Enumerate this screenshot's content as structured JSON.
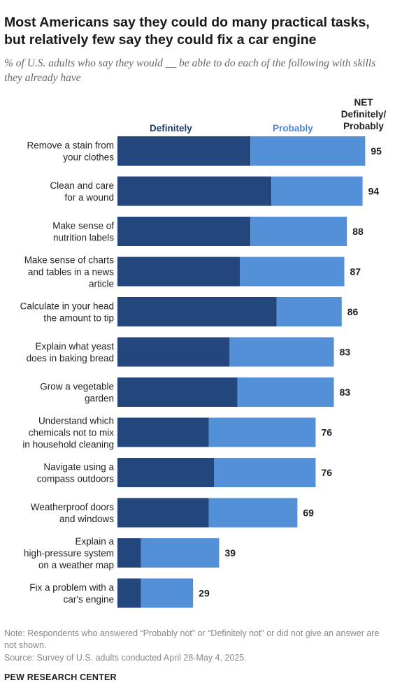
{
  "header": {
    "title": "Most Americans say they could do many practical tasks, but relatively few say they could fix a car engine",
    "subtitle": "% of U.S. adults who say they would __ be able to do each of the following with skills they already have"
  },
  "legend": {
    "definitely": "Definitely",
    "probably": "Probably",
    "net_line1": "NET",
    "net_line2": "Definitely/",
    "net_line3": "Probably"
  },
  "colors": {
    "definitely": "#23467d",
    "probably": "#5490d8"
  },
  "chart_data": {
    "type": "bar",
    "orientation": "horizontal",
    "stacked": true,
    "categories": [
      [
        "Remove a stain from",
        "your clothes"
      ],
      [
        "Clean and care",
        "for a wound"
      ],
      [
        "Make sense of",
        "nutrition labels"
      ],
      [
        "Make sense of charts",
        "and tables in a news",
        "article"
      ],
      [
        "Calculate in your head",
        "the amount to tip"
      ],
      [
        "Explain what yeast",
        "does in baking bread"
      ],
      [
        "Grow a vegetable",
        "garden"
      ],
      [
        "Understand which",
        "chemicals not to mix",
        "in household cleaning"
      ],
      [
        "Navigate using a",
        "compass outdoors"
      ],
      [
        "Weatherproof doors",
        "and windows"
      ],
      [
        "Explain a",
        "high-pressure system",
        "on a weather map"
      ],
      [
        "Fix a problem with a",
        "car's engine"
      ]
    ],
    "series": [
      {
        "name": "Definitely",
        "values": [
          51,
          59,
          51,
          47,
          61,
          43,
          46,
          35,
          37,
          35,
          9,
          9
        ]
      },
      {
        "name": "Probably",
        "values": [
          44,
          35,
          37,
          40,
          25,
          40,
          37,
          41,
          39,
          34,
          30,
          20
        ]
      }
    ],
    "net": [
      95,
      94,
      88,
      87,
      86,
      83,
      83,
      76,
      76,
      69,
      39,
      29
    ],
    "xlim": [
      0,
      100
    ]
  },
  "footer": {
    "note": "Note: Respondents who answered “Probably not” or “Definitely not” or did not give an answer are not shown.",
    "source": "Source: Survey of U.S. adults conducted April 28-May 4, 2025.",
    "brand": "PEW RESEARCH CENTER"
  }
}
